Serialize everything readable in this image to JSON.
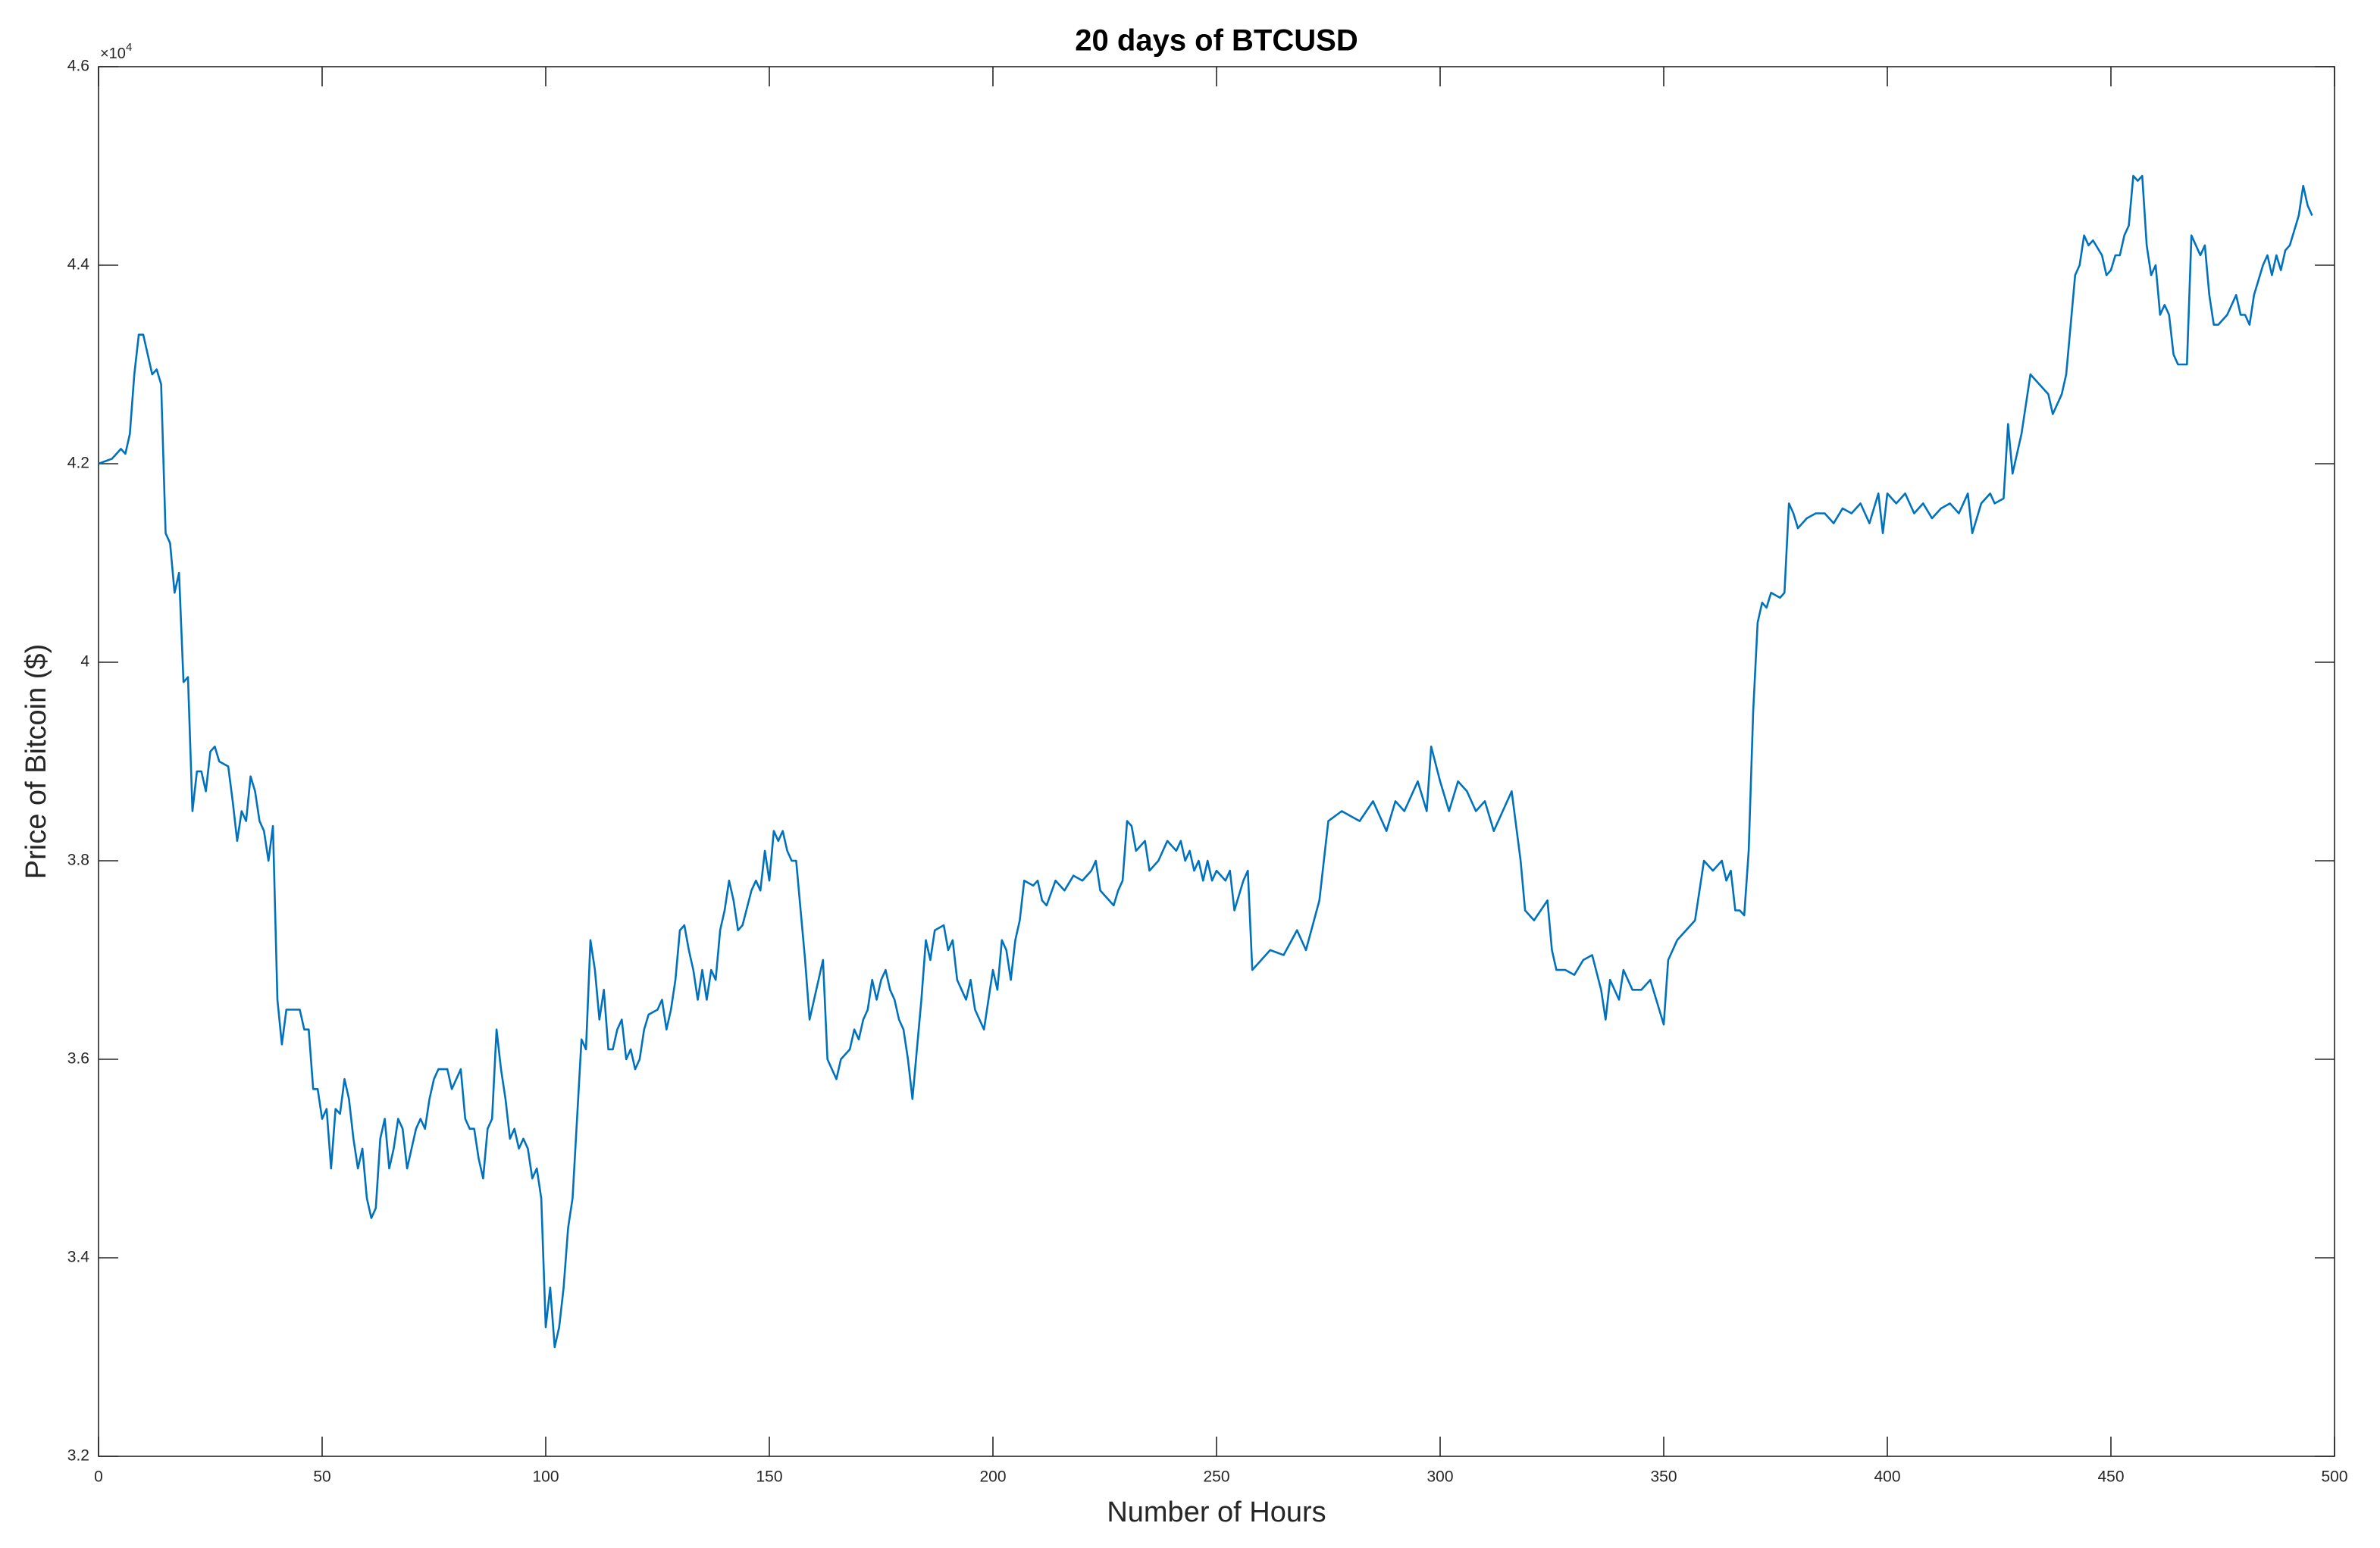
{
  "chart_data": {
    "type": "line",
    "title": "20 days of BTCUSD",
    "x_label": "Number of Hours",
    "y_label": "Price of Bitcoin ($)",
    "y_multiplier": {
      "base": "×10",
      "exponent": "4"
    },
    "xlim": [
      0,
      500
    ],
    "xticks": [
      0,
      50,
      100,
      150,
      200,
      250,
      300,
      350,
      400,
      450,
      500
    ],
    "ylim": [
      32000,
      46000
    ],
    "yticks": [
      {
        "value": 32000,
        "label": "3.2"
      },
      {
        "value": 34000,
        "label": "3.4"
      },
      {
        "value": 36000,
        "label": "3.6"
      },
      {
        "value": 38000,
        "label": "3.8"
      },
      {
        "value": 40000,
        "label": "4"
      },
      {
        "value": 42000,
        "label": "4.2"
      },
      {
        "value": 44000,
        "label": "4.4"
      },
      {
        "value": 46000,
        "label": "4.6"
      }
    ],
    "grid": false,
    "box": true,
    "color": "#0072bd",
    "x": [
      0,
      3,
      5,
      6,
      7,
      8,
      9,
      10,
      11,
      12,
      13,
      14,
      15,
      16,
      17,
      18,
      19,
      20,
      21,
      22,
      23,
      24,
      25,
      26,
      27,
      29,
      30,
      31,
      32,
      33,
      34,
      35,
      36,
      37,
      38,
      39,
      40,
      41,
      42,
      45,
      46,
      47,
      48,
      49,
      50,
      51,
      52,
      53,
      54,
      55,
      56,
      57,
      58,
      59,
      60,
      61,
      62,
      63,
      64,
      65,
      66,
      67,
      68,
      69,
      70,
      71,
      72,
      73,
      74,
      75,
      76,
      78,
      79,
      80,
      81,
      82,
      83,
      84,
      85,
      86,
      87,
      88,
      89,
      90,
      91,
      92,
      93,
      94,
      95,
      96,
      97,
      98,
      99,
      100,
      101,
      102,
      103,
      104,
      105,
      106,
      107,
      108,
      109,
      110,
      111,
      112,
      113,
      114,
      115,
      116,
      117,
      118,
      119,
      120,
      121,
      122,
      123,
      125,
      126,
      127,
      128,
      129,
      130,
      131,
      132,
      133,
      134,
      135,
      136,
      137,
      138,
      139,
      140,
      141,
      142,
      143,
      144,
      146,
      147,
      148,
      149,
      150,
      151,
      152,
      153,
      154,
      155,
      156,
      157,
      158,
      159,
      160,
      162,
      163,
      164,
      165,
      166,
      168,
      169,
      170,
      171,
      172,
      173,
      174,
      175,
      176,
      177,
      178,
      179,
      180,
      181,
      182,
      183,
      184,
      185,
      186,
      187,
      189,
      190,
      191,
      192,
      194,
      195,
      196,
      197,
      198,
      200,
      201,
      202,
      203,
      204,
      205,
      206,
      207,
      209,
      210,
      211,
      212,
      214,
      216,
      218,
      220,
      222,
      223,
      224,
      226,
      227,
      228,
      229,
      230,
      231,
      232,
      234,
      235,
      237,
      238,
      239,
      241,
      242,
      243,
      244,
      245,
      246,
      247,
      248,
      249,
      250,
      252,
      253,
      254,
      256,
      257,
      258,
      260,
      262,
      265,
      268,
      270,
      273,
      275,
      278,
      282,
      285,
      288,
      290,
      292,
      295,
      297,
      298,
      300,
      302,
      304,
      306,
      308,
      310,
      312,
      314,
      316,
      318,
      319,
      321,
      324,
      325,
      326,
      328,
      330,
      332,
      334,
      336,
      337,
      338,
      340,
      341,
      343,
      345,
      347,
      350,
      351,
      353,
      355,
      357,
      358,
      359,
      361,
      363,
      364,
      365,
      366,
      367,
      368,
      369,
      370,
      371,
      372,
      373,
      374,
      376,
      377,
      378,
      379,
      380,
      382,
      384,
      386,
      388,
      390,
      392,
      394,
      396,
      398,
      399,
      400,
      402,
      404,
      406,
      408,
      410,
      412,
      414,
      416,
      418,
      419,
      421,
      423,
      424,
      426,
      427,
      428,
      430,
      432,
      434,
      436,
      437,
      439,
      440,
      442,
      443,
      444,
      445,
      446,
      448,
      449,
      450,
      451,
      452,
      453,
      454,
      455,
      456,
      457,
      458,
      459,
      460,
      461,
      462,
      463,
      464,
      465,
      466,
      467,
      468,
      469,
      470,
      471,
      472,
      473,
      474,
      476,
      478,
      479,
      480,
      481,
      482,
      484,
      485,
      486,
      487,
      488,
      489,
      490,
      492,
      493,
      494,
      495
    ],
    "values": [
      42000,
      42050,
      42150,
      42100,
      42300,
      42900,
      43300,
      43300,
      43100,
      42900,
      42950,
      42800,
      41300,
      41200,
      40700,
      40900,
      39800,
      39850,
      38500,
      38900,
      38900,
      38700,
      39100,
      39150,
      39000,
      38950,
      38600,
      38200,
      38500,
      38400,
      38850,
      38700,
      38400,
      38300,
      38000,
      38350,
      36600,
      36150,
      36500,
      36500,
      36300,
      36300,
      35700,
      35700,
      35400,
      35500,
      34900,
      35500,
      35450,
      35800,
      35600,
      35200,
      34900,
      35100,
      34600,
      34400,
      34500,
      35200,
      35400,
      34900,
      35100,
      35400,
      35300,
      34900,
      35100,
      35300,
      35400,
      35300,
      35600,
      35800,
      35900,
      35900,
      35700,
      35800,
      35900,
      35400,
      35300,
      35300,
      35000,
      34800,
      35300,
      35400,
      36300,
      35900,
      35600,
      35200,
      35300,
      35100,
      35200,
      35100,
      34800,
      34900,
      34600,
      33300,
      33700,
      33100,
      33300,
      33700,
      34300,
      34600,
      35400,
      36200,
      36100,
      37200,
      36900,
      36400,
      36700,
      36100,
      36100,
      36300,
      36400,
      36000,
      36100,
      35900,
      36000,
      36300,
      36450,
      36500,
      36600,
      36300,
      36500,
      36800,
      37300,
      37350,
      37100,
      36900,
      36600,
      36900,
      36600,
      36900,
      36800,
      37300,
      37500,
      37800,
      37600,
      37300,
      37350,
      37700,
      37800,
      37700,
      38100,
      37800,
      38300,
      38200,
      38300,
      38100,
      38000,
      38000,
      37500,
      37000,
      36400,
      36600,
      37000,
      36000,
      35900,
      35800,
      36000,
      36100,
      36300,
      36200,
      36400,
      36500,
      36800,
      36600,
      36800,
      36900,
      36700,
      36600,
      36400,
      36300,
      36000,
      35600,
      36100,
      36600,
      37200,
      37000,
      37300,
      37350,
      37100,
      37200,
      36800,
      36600,
      36800,
      36500,
      36400,
      36300,
      36900,
      36700,
      37200,
      37100,
      36800,
      37200,
      37400,
      37800,
      37750,
      37800,
      37600,
      37550,
      37800,
      37700,
      37850,
      37800,
      37900,
      38000,
      37700,
      37600,
      37550,
      37700,
      37800,
      38400,
      38350,
      38100,
      38200,
      37900,
      38000,
      38100,
      38200,
      38100,
      38200,
      38000,
      38100,
      37900,
      38000,
      37800,
      38000,
      37800,
      37900,
      37800,
      37900,
      37500,
      37800,
      37900,
      36900,
      37000,
      37100,
      37050,
      37300,
      37100,
      37600,
      38400,
      38500,
      38400,
      38600,
      38300,
      38600,
      38500,
      38800,
      38500,
      39150,
      38800,
      38500,
      38800,
      38700,
      38500,
      38600,
      38300,
      38500,
      38700,
      38000,
      37500,
      37400,
      37600,
      37100,
      36900,
      36900,
      36850,
      37000,
      37050,
      36700,
      36400,
      36800,
      36600,
      36900,
      36700,
      36700,
      36800,
      36350,
      37000,
      37200,
      37300,
      37400,
      37700,
      38000,
      37900,
      38000,
      37800,
      37900,
      37500,
      37500,
      37450,
      38100,
      39500,
      40400,
      40600,
      40550,
      40700,
      40650,
      40700,
      41600,
      41500,
      41350,
      41450,
      41500,
      41500,
      41400,
      41550,
      41500,
      41600,
      41400,
      41700,
      41300,
      41700,
      41600,
      41700,
      41500,
      41600,
      41450,
      41550,
      41600,
      41500,
      41700,
      41300,
      41600,
      41700,
      41600,
      41650,
      42400,
      41900,
      42300,
      42900,
      42800,
      42700,
      42500,
      42700,
      42900,
      43900,
      44000,
      44300,
      44200,
      44250,
      44100,
      43900,
      43950,
      44100,
      44100,
      44300,
      44400,
      44900,
      44850,
      44900,
      44200,
      43900,
      44000,
      43500,
      43600,
      43500,
      43100,
      43000,
      43000,
      43000,
      44300,
      44200,
      44100,
      44200,
      43700,
      43400,
      43400,
      43500,
      43700,
      43500,
      43500,
      43400,
      43700,
      44000,
      44100,
      43900,
      44100,
      43950,
      44150,
      44200,
      44500,
      44800,
      44600,
      44500
    ]
  }
}
